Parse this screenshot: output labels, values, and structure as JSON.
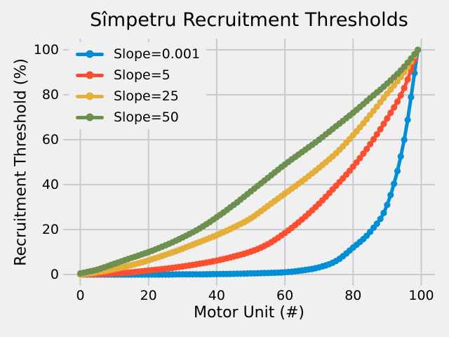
{
  "chart_data": {
    "type": "line",
    "title": "Sîmpetru Recruitment Thresholds",
    "xlabel": "Motor Unit (#)",
    "ylabel": "Recruitment Threshold (%)",
    "x_ticks": [
      0,
      20,
      40,
      60,
      80,
      100
    ],
    "y_ticks": [
      0,
      20,
      40,
      60,
      80,
      100
    ],
    "xlim": [
      -5,
      104
    ],
    "ylim": [
      -5,
      105
    ],
    "grid": true,
    "grid_color": "#cbcbcb",
    "background_color": "#f0f0f0",
    "legend_position": "upper left",
    "marker": "circle",
    "n_motor_units": 100,
    "x": [
      0,
      5,
      10,
      15,
      20,
      25,
      30,
      35,
      40,
      45,
      50,
      55,
      60,
      65,
      70,
      75,
      80,
      85,
      90,
      95,
      99
    ],
    "series": [
      {
        "name": "Slope=0.001",
        "slope": 0.001,
        "color": "#008fd5",
        "values": [
          0,
          0,
          0,
          0,
          0,
          0,
          0.1,
          0.1,
          0.2,
          0.3,
          0.5,
          0.7,
          1.0,
          1.8,
          3.2,
          6,
          12,
          19,
          31,
          60,
          100
        ]
      },
      {
        "name": "Slope=5",
        "slope": 5,
        "color": "#fc4f30",
        "values": [
          0,
          0.2,
          0.5,
          1.0,
          1.8,
          2.6,
          3.6,
          4.8,
          6.2,
          8.0,
          10.2,
          13.5,
          18.5,
          24.5,
          31.5,
          39.5,
          48,
          58,
          69.5,
          83,
          100
        ]
      },
      {
        "name": "Slope=25",
        "slope": 25,
        "color": "#e5ae38",
        "values": [
          0,
          1.0,
          2.4,
          4.2,
          6.3,
          8.8,
          11.5,
          14.5,
          17.5,
          21,
          25,
          30.5,
          36,
          41.5,
          47.5,
          54,
          62,
          71,
          80.5,
          90,
          100
        ]
      },
      {
        "name": "Slope=50",
        "slope": 50,
        "color": "#6d904f",
        "values": [
          0.5,
          2.2,
          4.8,
          7.4,
          10,
          13,
          16.5,
          20.5,
          25.5,
          31,
          37,
          43,
          49,
          54.5,
          60,
          66,
          72,
          78.5,
          85,
          92.5,
          100
        ]
      }
    ]
  }
}
